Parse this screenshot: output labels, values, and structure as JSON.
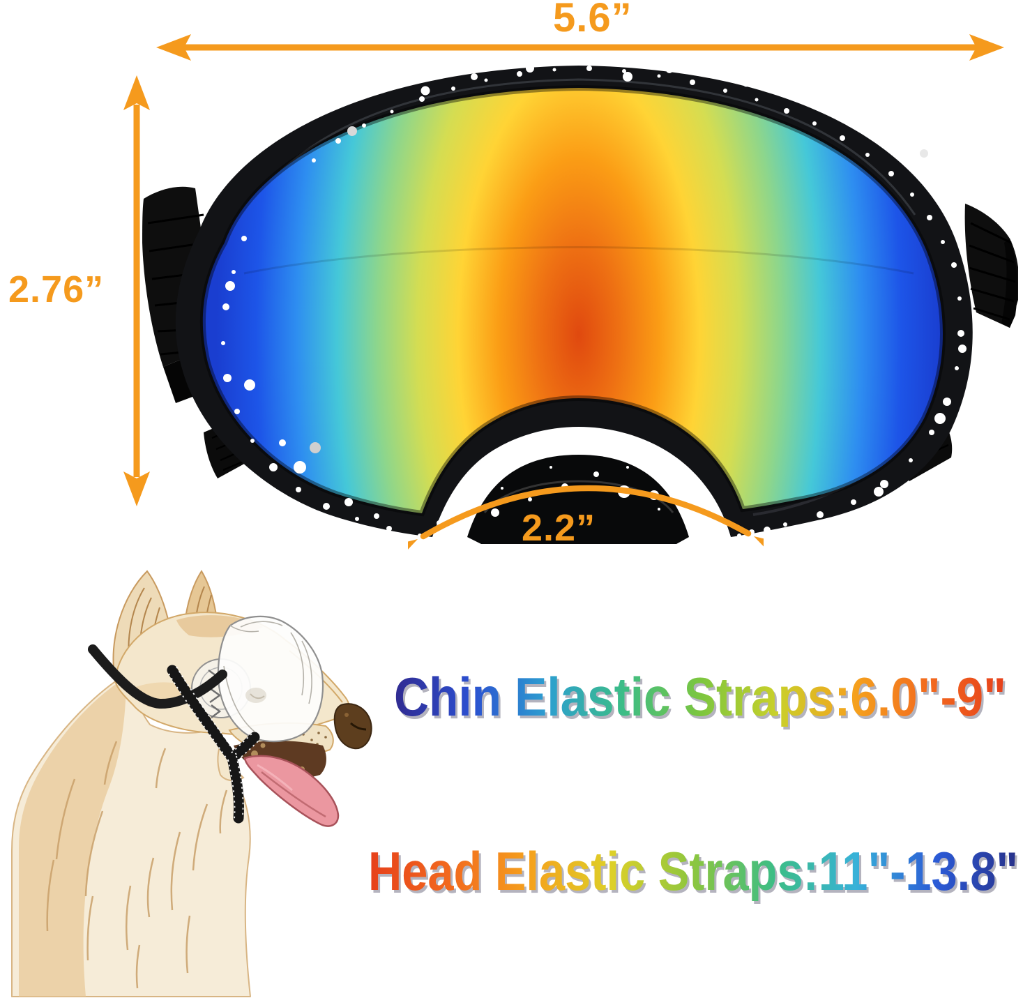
{
  "page": {
    "background": "#ffffff",
    "accent_color": "#f59a1d"
  },
  "labels": {
    "width": "5.6”",
    "height": "2.76”",
    "bridge": "2.2”"
  },
  "strap_info": {
    "chin": "Chin Elastic Straps:6.0\"-9\"",
    "head": "Head Elastic Straps:11\"-13.8\""
  },
  "colors": {
    "arrow_orange": "#f59a1d",
    "goggle_frame": "#121316",
    "goggle_speckle": "#ffffff",
    "strap_black": "#0d0d0d",
    "dog_body": "#f4e7cc",
    "dog_patch": "#e5c391",
    "dog_tongue": "#eb97a0",
    "mask_white": "#fdfdfc",
    "text_shadow": "#5a5870",
    "chin_text_gradient": [
      "#312b91",
      "#2b4fd0",
      "#2d9fd0",
      "#3cbd86",
      "#7cc63f",
      "#c9d02a",
      "#f5a21d",
      "#f2691e",
      "#e6401b"
    ],
    "head_text_gradient": [
      "#e6401b",
      "#f2691e",
      "#f5a21d",
      "#ddd028",
      "#8cc63f",
      "#3cbd86",
      "#38b2d8",
      "#2b5ad6",
      "#283189"
    ],
    "lens_gradient": [
      "#e0490f",
      "#ee7013",
      "#fb9d15",
      "#ffd435",
      "#d4dd52",
      "#8ed68b",
      "#45c8d8",
      "#2e8ef0",
      "#1d55e8",
      "#1a3ed0"
    ]
  }
}
